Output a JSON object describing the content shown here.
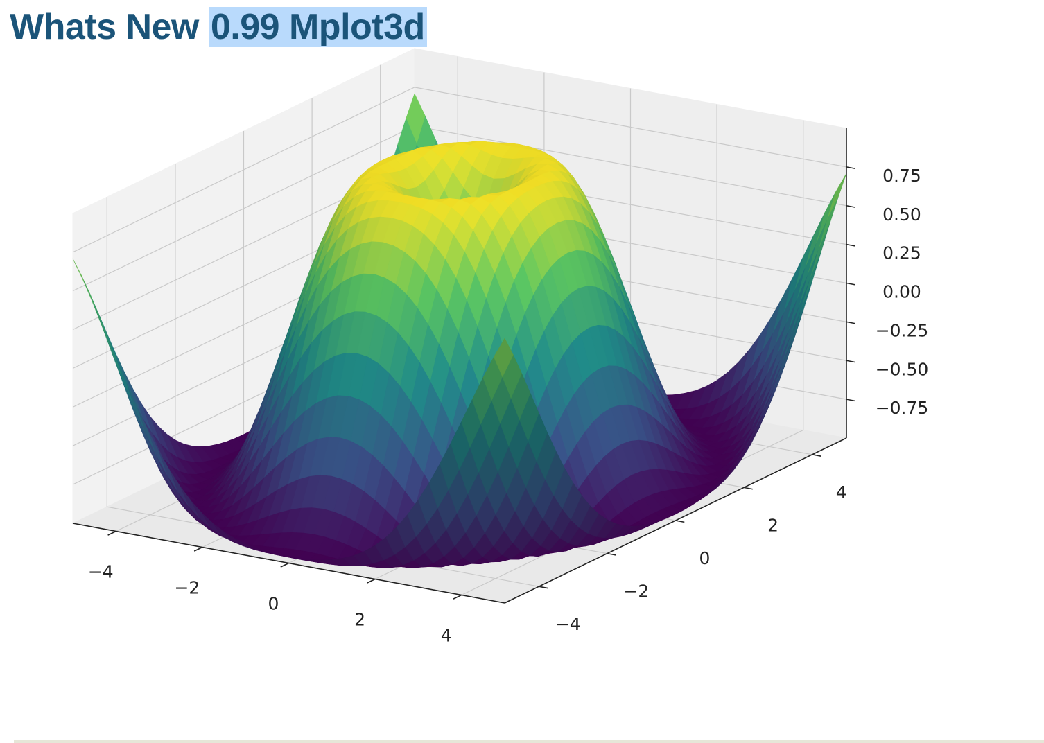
{
  "page": {
    "title_prefix": "Whats New ",
    "title_selected": "0.99 Mplot3d"
  },
  "chart_data": {
    "type": "surface3d",
    "function": "z = sin(sqrt(x^2 + y^2))",
    "colormap": "viridis",
    "colormap_stops": [
      "#440154",
      "#3b528b",
      "#21908d",
      "#5dc963",
      "#fde725"
    ],
    "pane_color": "#f2f2f2",
    "grid": true,
    "x_ticks": [
      "−4",
      "−2",
      "0",
      "2",
      "4"
    ],
    "y_ticks": [
      "−4",
      "−2",
      "0",
      "2",
      "4"
    ],
    "z_ticks": [
      "0.75",
      "0.50",
      "0.25",
      "0.00",
      "−0.25",
      "−0.50",
      "−0.75"
    ],
    "x_range": [
      -5,
      5
    ],
    "y_range": [
      -5,
      5
    ],
    "z_range": [
      -1,
      1
    ],
    "xlabel": "",
    "ylabel": "",
    "zlabel": "",
    "title": ""
  }
}
